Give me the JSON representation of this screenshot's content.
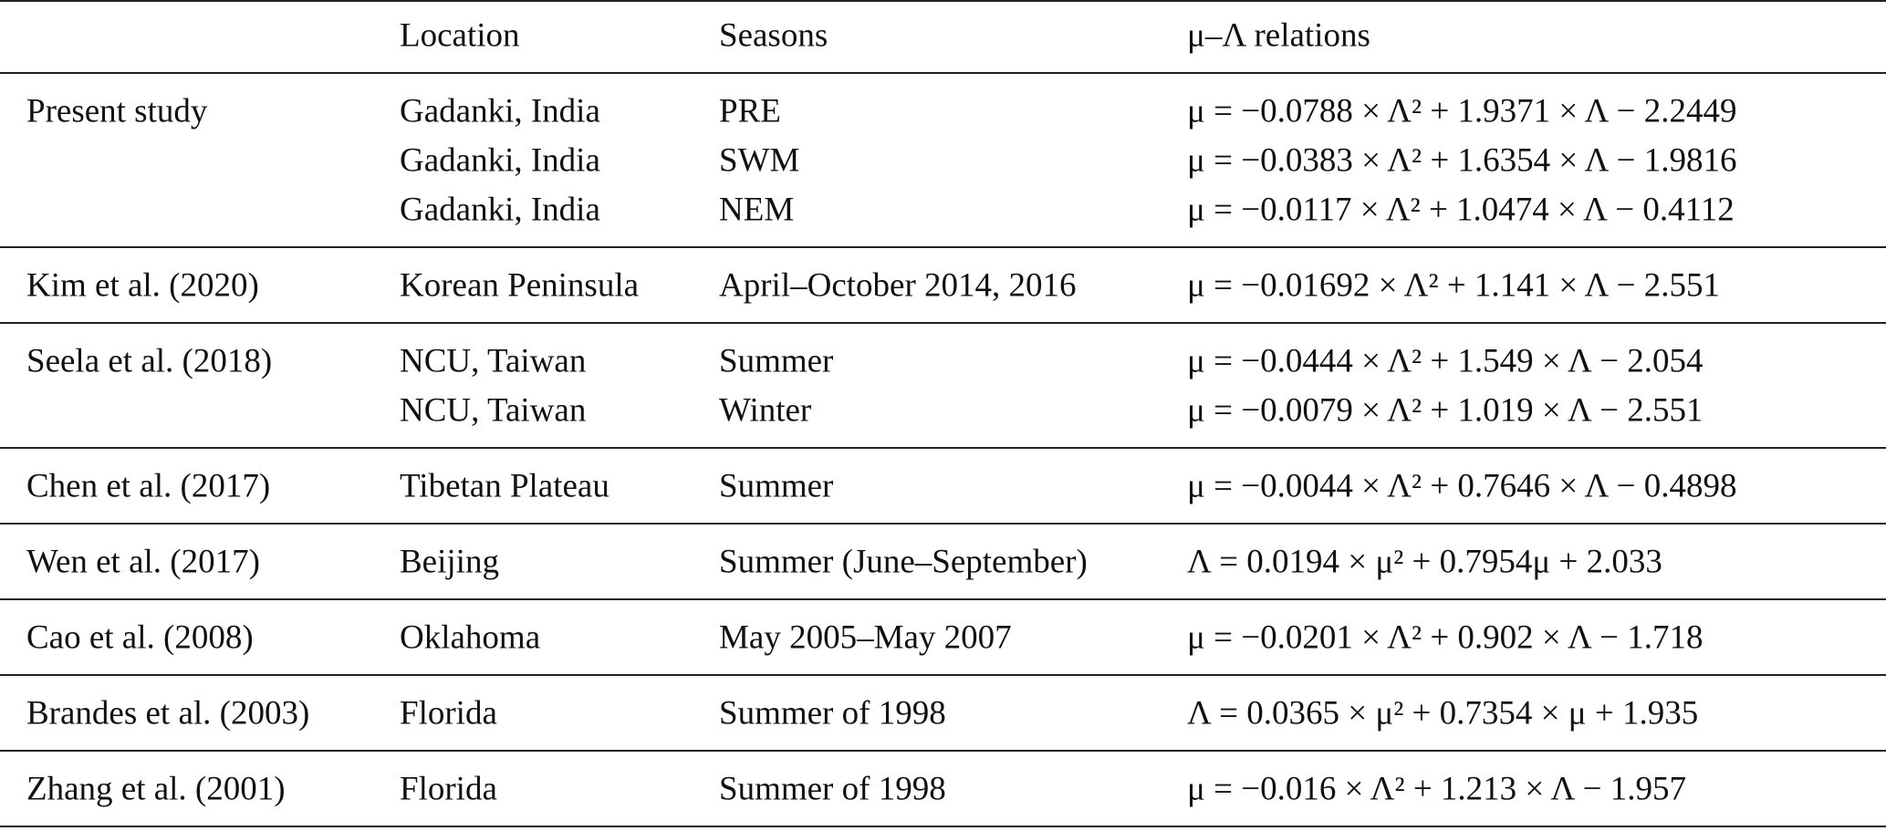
{
  "header": {
    "location": "Location",
    "seasons": "Seasons",
    "relations": "μ–Λ relations"
  },
  "groups": [
    {
      "study": "Present study",
      "rows": [
        {
          "location": "Gadanki, India",
          "season": "PRE",
          "relation": "μ = −0.0788 × Λ² + 1.9371 × Λ − 2.2449"
        },
        {
          "location": "Gadanki, India",
          "season": "SWM",
          "relation": "μ = −0.0383 × Λ² + 1.6354 × Λ − 1.9816"
        },
        {
          "location": "Gadanki, India",
          "season": "NEM",
          "relation": "μ = −0.0117 × Λ² + 1.0474 × Λ − 0.4112"
        }
      ]
    },
    {
      "study": "Kim et al. (2020)",
      "rows": [
        {
          "location": "Korean Peninsula",
          "season": "April–October 2014, 2016",
          "relation": "μ = −0.01692 × Λ² + 1.141 × Λ − 2.551"
        }
      ]
    },
    {
      "study": "Seela et al. (2018)",
      "rows": [
        {
          "location": "NCU, Taiwan",
          "season": "Summer",
          "relation": "μ = −0.0444 × Λ² + 1.549 × Λ − 2.054"
        },
        {
          "location": "NCU, Taiwan",
          "season": "Winter",
          "relation": "μ = −0.0079 × Λ² + 1.019 × Λ − 2.551"
        }
      ]
    },
    {
      "study": "Chen et al. (2017)",
      "rows": [
        {
          "location": "Tibetan Plateau",
          "season": "Summer",
          "relation": "μ = −0.0044 × Λ² + 0.7646 × Λ − 0.4898"
        }
      ]
    },
    {
      "study": "Wen et al. (2017)",
      "rows": [
        {
          "location": "Beijing",
          "season": "Summer (June–September)",
          "relation": "Λ = 0.0194 × μ² + 0.7954μ + 2.033"
        }
      ]
    },
    {
      "study": "Cao et al. (2008)",
      "rows": [
        {
          "location": "Oklahoma",
          "season": "May 2005–May 2007",
          "relation": "μ = −0.0201 × Λ² + 0.902 × Λ − 1.718"
        }
      ]
    },
    {
      "study": "Brandes et al. (2003)",
      "rows": [
        {
          "location": "Florida",
          "season": "Summer of 1998",
          "relation": "Λ = 0.0365 × μ² + 0.7354 × μ + 1.935"
        }
      ]
    },
    {
      "study": "Zhang et al. (2001)",
      "rows": [
        {
          "location": "Florida",
          "season": "Summer of 1998",
          "relation": "μ = −0.016 × Λ² + 1.213 × Λ − 1.957"
        }
      ]
    }
  ]
}
